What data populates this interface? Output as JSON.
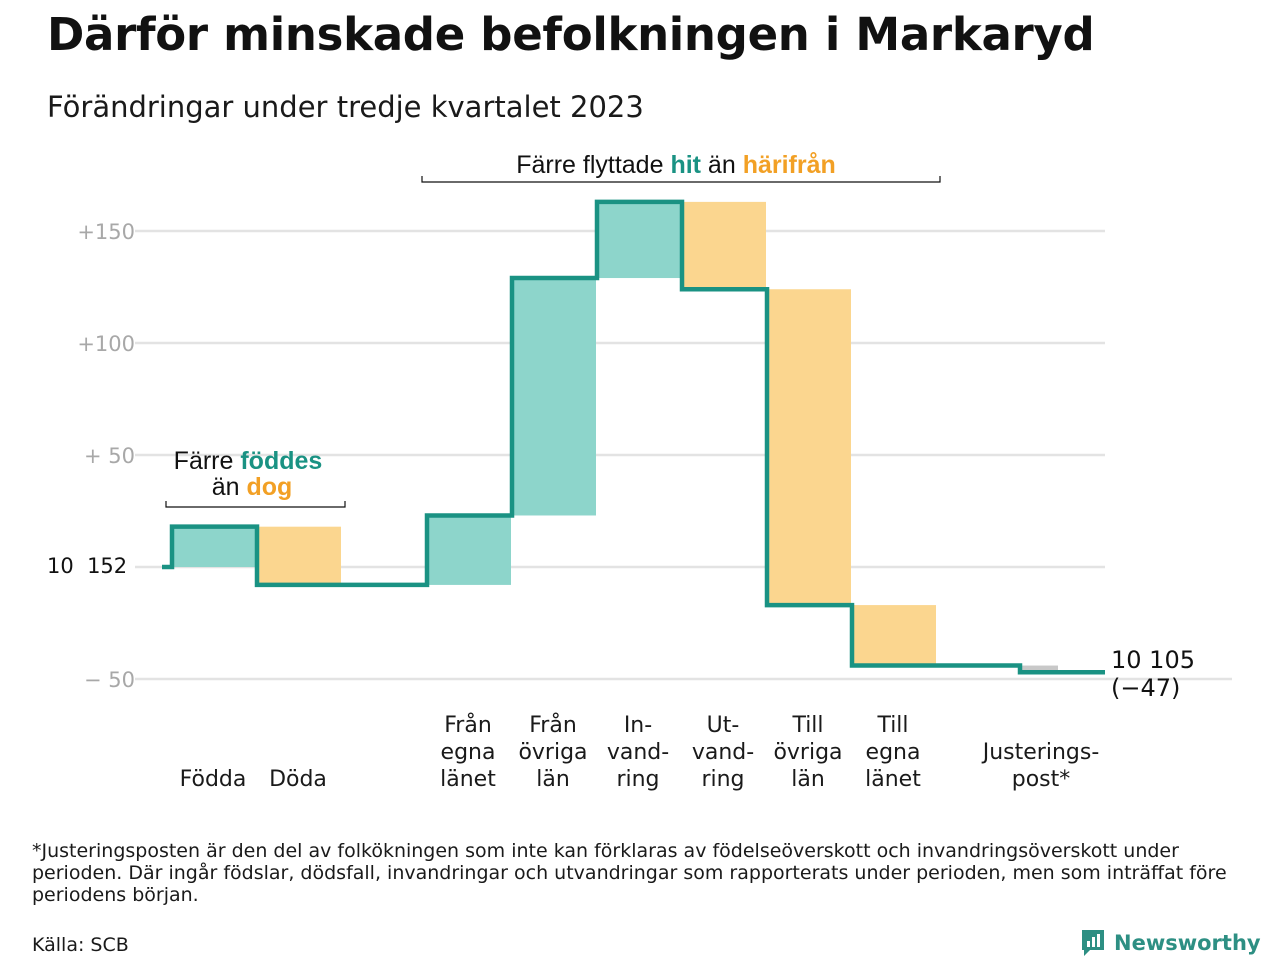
{
  "title": "Därför minskade befolkningen i Markaryd",
  "subtitle": "Förändringar under tredje kvartalet 2023",
  "colors": {
    "increase": "#8dd5cb",
    "decrease": "#fbd68f",
    "adjustment": "#c8c8c8",
    "line": "#1a9283",
    "teal_text": "#1a9283",
    "orange_text": "#f2a025",
    "grid": "#e3e3e3"
  },
  "annotations": {
    "births": {
      "line1_pre": "Färre ",
      "line1_hl": "föddes",
      "line2_pre": "än ",
      "line2_hl": "dog"
    },
    "migration": {
      "pre": "Färre flyttade ",
      "hl1": "hit",
      "mid": " än ",
      "hl2": "härifrån"
    }
  },
  "start_label": "10  152",
  "end_label": {
    "value": "10 105",
    "change": "(−47)"
  },
  "footnote": "*Justeringsposten är den del av folkökningen som inte kan förklaras av födelseöverskott och invandringsöverskott under perioden. Där ingår födslar, dödsfall, invandringar och utvandringar som rapporterats under perioden, men som inträffat före periodens början.",
  "source": "Källa: SCB",
  "brand": "Newsworthy",
  "chart_data": {
    "type": "waterfall",
    "start_value": 10152,
    "end_value": 10105,
    "net_change": -47,
    "y_tick_labels": [
      "+150",
      "+100",
      "+  50",
      "−  50"
    ],
    "y_ticks": [
      150,
      100,
      50,
      -50
    ],
    "ylim": [
      -50,
      165
    ],
    "grid": true,
    "steps": [
      {
        "category": [
          "Födda"
        ],
        "delta": 18,
        "kind": "increase"
      },
      {
        "category": [
          "Döda"
        ],
        "delta": -26,
        "kind": "decrease"
      },
      {
        "category": [
          "Från",
          "egna",
          "länet"
        ],
        "delta": 31,
        "kind": "increase"
      },
      {
        "category": [
          "Från",
          "övriga",
          "län"
        ],
        "delta": 106,
        "kind": "increase"
      },
      {
        "category": [
          "In-",
          "vand-",
          "ring"
        ],
        "delta": 34,
        "kind": "increase"
      },
      {
        "category": [
          "Ut-",
          "vand-",
          "ring"
        ],
        "delta": -39,
        "kind": "decrease"
      },
      {
        "category": [
          "Till",
          "övriga",
          "län"
        ],
        "delta": -141,
        "kind": "decrease"
      },
      {
        "category": [
          "Till",
          "egna",
          "länet"
        ],
        "delta": -27,
        "kind": "decrease"
      },
      {
        "category": [
          "Justerings-",
          "post*"
        ],
        "delta": -3,
        "kind": "adjustment"
      }
    ]
  }
}
